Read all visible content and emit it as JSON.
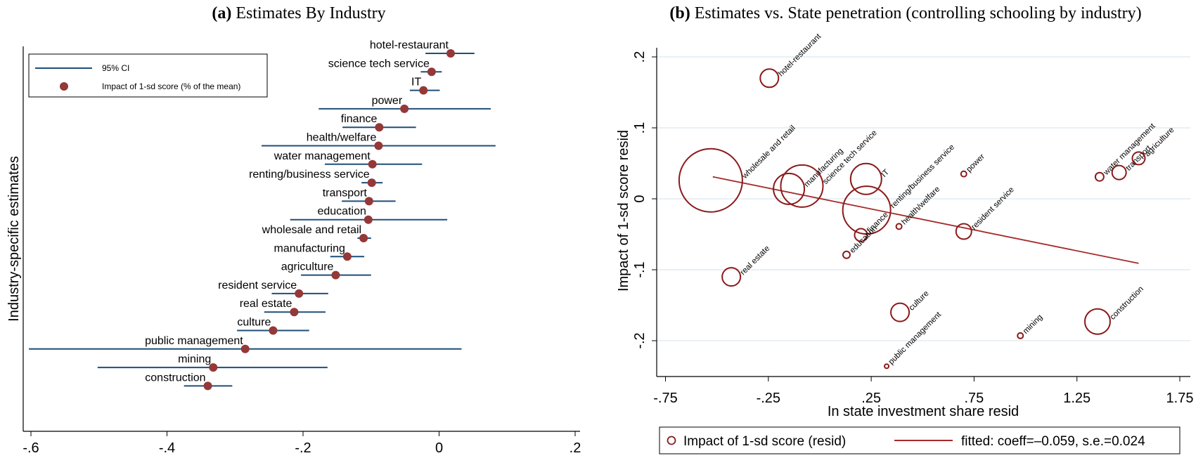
{
  "panel_a": {
    "title_prefix": "(a)",
    "title_text": "Estimates By Industry",
    "legend": {
      "ci_label": "95% CI",
      "point_label": "Impact of 1-sd score (% of the mean)"
    }
  },
  "panel_b": {
    "title_prefix": "(b)",
    "title_text": "Estimates vs. State penetration (controlling schooling by industry)",
    "legend": {
      "marker_label": "Impact of 1-sd score (resid)",
      "line_label": "fitted: coeff=–0.059, s.e.=0.024"
    }
  },
  "colors": {
    "ci_line": "#1f4e79",
    "point": "#943838",
    "bubble": "#8b1a1a",
    "fit_line": "#a52a2a",
    "gridline": "#e4ecf1"
  },
  "chart_data": [
    {
      "type": "scatter",
      "subtype": "coefficient-plot",
      "title": "(a) Estimates By Industry",
      "ylabel": "Industry-specific estimates",
      "xlabel": "",
      "xlim": [
        -0.62,
        0.215
      ],
      "xticks": [
        -0.6,
        -0.4,
        -0.2,
        0,
        0.2
      ],
      "xtick_labels": [
        "-.6",
        "-.4",
        "-.2",
        "0",
        ".2"
      ],
      "grid": false,
      "legend_position": "top-left",
      "legend": [
        "95% CI",
        "Impact of 1-sd score (% of the mean)"
      ],
      "series": [
        {
          "name": "hotel-restaurant",
          "estimate": 0.017,
          "ci": [
            -0.02,
            0.052
          ]
        },
        {
          "name": "science tech service",
          "estimate": -0.011,
          "ci": [
            -0.027,
            0.004
          ]
        },
        {
          "name": "IT",
          "estimate": -0.023,
          "ci": [
            -0.043,
            0.001
          ]
        },
        {
          "name": "power",
          "estimate": -0.051,
          "ci": [
            -0.177,
            0.076
          ]
        },
        {
          "name": "finance",
          "estimate": -0.088,
          "ci": [
            -0.142,
            -0.034
          ]
        },
        {
          "name": "health/welfare",
          "estimate": -0.089,
          "ci": [
            -0.261,
            0.083
          ]
        },
        {
          "name": "water management",
          "estimate": -0.098,
          "ci": [
            -0.168,
            -0.025
          ]
        },
        {
          "name": "renting/business service",
          "estimate": -0.099,
          "ci": [
            -0.114,
            -0.083
          ]
        },
        {
          "name": "transport",
          "estimate": -0.103,
          "ci": [
            -0.143,
            -0.064
          ]
        },
        {
          "name": "education",
          "estimate": -0.104,
          "ci": [
            -0.219,
            0.012
          ]
        },
        {
          "name": "wholesale and retail",
          "estimate": -0.111,
          "ci": [
            -0.12,
            -0.1
          ]
        },
        {
          "name": "manufacturing",
          "estimate": -0.135,
          "ci": [
            -0.16,
            -0.11
          ]
        },
        {
          "name": "agriculture",
          "estimate": -0.152,
          "ci": [
            -0.203,
            -0.1
          ]
        },
        {
          "name": "resident service",
          "estimate": -0.206,
          "ci": [
            -0.246,
            -0.163
          ]
        },
        {
          "name": "real estate",
          "estimate": -0.213,
          "ci": [
            -0.257,
            -0.167
          ]
        },
        {
          "name": "culture",
          "estimate": -0.244,
          "ci": [
            -0.297,
            -0.191
          ]
        },
        {
          "name": "public management",
          "estimate": -0.285,
          "ci": [
            -0.603,
            0.033
          ]
        },
        {
          "name": "mining",
          "estimate": -0.332,
          "ci": [
            -0.502,
            -0.164
          ]
        },
        {
          "name": "construction",
          "estimate": -0.34,
          "ci": [
            -0.375,
            -0.304
          ]
        }
      ]
    },
    {
      "type": "scatter",
      "subtype": "weighted-bubble-with-fit",
      "title": "(b) Estimates vs. State penetration (controlling schooling by industry)",
      "xlabel": "In state investment share resid",
      "ylabel": "Impact of 1-sd score resid",
      "xlim": [
        -0.78,
        1.78
      ],
      "ylim": [
        -0.25,
        0.205
      ],
      "xticks": [
        -0.75,
        -0.25,
        0.25,
        0.75,
        1.25,
        1.75
      ],
      "xtick_labels": [
        "-.75",
        "-.25",
        ".25",
        ".75",
        "1.25",
        "1.75"
      ],
      "yticks": [
        -0.2,
        -0.1,
        0,
        0.1,
        0.2
      ],
      "ytick_labels": [
        "-.2",
        "-.1",
        "0",
        ".1",
        ".2"
      ],
      "grid": true,
      "legend_position": "bottom",
      "fit": {
        "coeff": -0.059,
        "se": 0.024,
        "x": [
          -0.52,
          1.55
        ],
        "y": [
          0.031,
          -0.091
        ]
      },
      "points": [
        {
          "label": "hotel-restaurant",
          "x": -0.245,
          "y": 0.17,
          "size": 13
        },
        {
          "label": "wholesale and retail",
          "x": -0.53,
          "y": 0.026,
          "size": 45
        },
        {
          "label": "manufacturing",
          "x": -0.15,
          "y": 0.014,
          "size": 22
        },
        {
          "label": "science tech service",
          "x": -0.087,
          "y": 0.018,
          "size": 30
        },
        {
          "label": "IT",
          "x": 0.225,
          "y": 0.028,
          "size": 22
        },
        {
          "label": "renting/business service",
          "x": 0.228,
          "y": -0.016,
          "size": 34
        },
        {
          "label": "finance",
          "x": 0.2,
          "y": -0.051,
          "size": 9
        },
        {
          "label": "health/welfare",
          "x": 0.385,
          "y": -0.039,
          "size": 4
        },
        {
          "label": "power",
          "x": 0.7,
          "y": 0.035,
          "size": 4
        },
        {
          "label": "resident service",
          "x": 0.7,
          "y": -0.046,
          "size": 11
        },
        {
          "label": "education",
          "x": 0.13,
          "y": -0.079,
          "size": 5
        },
        {
          "label": "real estate",
          "x": -0.43,
          "y": -0.11,
          "size": 13
        },
        {
          "label": "culture",
          "x": 0.39,
          "y": -0.16,
          "size": 13
        },
        {
          "label": "public management",
          "x": 0.325,
          "y": -0.236,
          "size": 3
        },
        {
          "label": "mining",
          "x": 0.975,
          "y": -0.193,
          "size": 4
        },
        {
          "label": "construction",
          "x": 1.35,
          "y": -0.173,
          "size": 18
        },
        {
          "label": "water management",
          "x": 1.36,
          "y": 0.031,
          "size": 6
        },
        {
          "label": "transport",
          "x": 1.455,
          "y": 0.037,
          "size": 10
        },
        {
          "label": "agriculture",
          "x": 1.55,
          "y": 0.057,
          "size": 9
        }
      ]
    }
  ]
}
